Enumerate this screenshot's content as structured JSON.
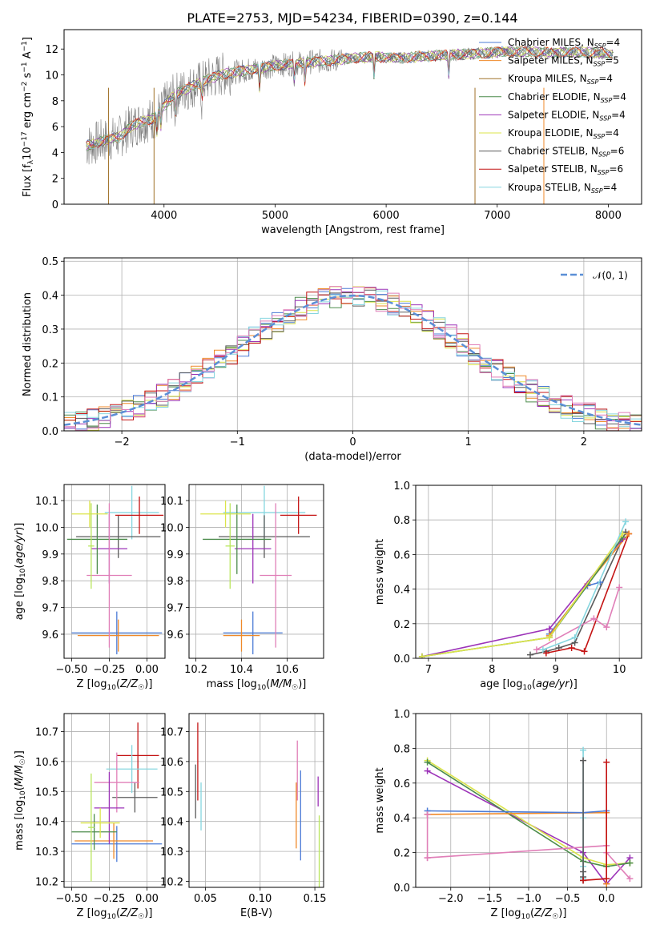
{
  "figure_title": "PLATE=2753, MJD=54234, FIBERID=0390, z=0.144",
  "colors": {
    "Chabrier MILES": "#4c7bd6",
    "Salpeter MILES": "#ef8a2a",
    "Kroupa MILES": "#a0722a",
    "Chabrier ELODIE": "#4c8c4c",
    "Salpeter ELODIE": "#9c33b8",
    "Kroupa ELODIE": "#dbe44a",
    "Chabrier STELIB": "#5a5a5a",
    "Salpeter STELIB": "#c41414",
    "Kroupa STELIB": "#86d6df",
    "pink": "#e07fb8",
    "lime": "#b9e65c",
    "normal_curve": "#5b8fd6",
    "spectrum_data": "#808080"
  },
  "chart_data": [
    {
      "panel": "spectrum",
      "type": "line",
      "title": "PLATE=2753, MJD=54234, FIBERID=0390, z=0.144",
      "xlabel": "wavelength [Angstrom, rest frame]",
      "ylabel": "Flux [f_λ 10^-17 erg cm^-2 s^-1 A^-1]",
      "xlim": [
        3100,
        8300
      ],
      "ylim": [
        0,
        13.5
      ],
      "xticks": [
        4000,
        5000,
        6000,
        7000,
        8000
      ],
      "yticks": [
        0,
        2,
        4,
        6,
        8,
        10,
        12
      ],
      "legend": [
        "Chabrier MILES, N_SSP=4",
        "Salpeter MILES, N_SSP=5",
        "Kroupa MILES, N_SSP=4",
        "Chabrier ELODIE, N_SSP=4",
        "Salpeter ELODIE, N_SSP=4",
        "Kroupa ELODIE, N_SSP=4",
        "Chabrier STELIB, N_SSP=6",
        "Salpeter STELIB, N_SSP=6",
        "Kroupa STELIB, N_SSP=4"
      ],
      "continuum": [
        [
          3300,
          4.5
        ],
        [
          3450,
          4.9
        ],
        [
          3600,
          5.2
        ],
        [
          3700,
          6.0
        ],
        [
          3800,
          6.4
        ],
        [
          3900,
          6.6
        ],
        [
          4000,
          7.6
        ],
        [
          4100,
          8.5
        ],
        [
          4300,
          9.3
        ],
        [
          4500,
          10.0
        ],
        [
          4700,
          10.3
        ],
        [
          4900,
          10.6
        ],
        [
          5100,
          10.8
        ],
        [
          5300,
          11.0
        ],
        [
          5500,
          11.1
        ],
        [
          5700,
          11.3
        ],
        [
          5900,
          11.4
        ],
        [
          6100,
          11.3
        ],
        [
          6300,
          11.4
        ],
        [
          6500,
          11.5
        ],
        [
          6700,
          11.6
        ],
        [
          6900,
          11.7
        ],
        [
          7100,
          11.8
        ],
        [
          7300,
          11.8
        ],
        [
          7500,
          11.7
        ],
        [
          7700,
          11.8
        ],
        [
          7900,
          11.7
        ],
        [
          8050,
          11.6
        ]
      ],
      "absorption_lines": [
        3934,
        3969,
        4102,
        4340,
        4861,
        5175,
        5270,
        5890,
        6563
      ]
    },
    {
      "panel": "residual_histogram",
      "type": "histogram",
      "xlabel": "(data-model)/error",
      "ylabel": "Normed distribution",
      "xlim": [
        -2.5,
        2.5
      ],
      "ylim": [
        0,
        0.51
      ],
      "xticks": [
        -2,
        -1,
        0,
        1,
        2
      ],
      "yticks": [
        0.0,
        0.1,
        0.2,
        0.3,
        0.4,
        0.5
      ],
      "legend": [
        "𝒩(0, 1)"
      ],
      "bin_width": 0.1
    },
    {
      "panel": "age_vs_Z",
      "type": "errorbar",
      "xlabel": "Z [log10(Z/Z☉)]",
      "ylabel": "age [log10(age/yr)]",
      "xlim": [
        -0.55,
        0.12
      ],
      "ylim": [
        9.51,
        10.16
      ],
      "xticks": [
        -0.5,
        -0.25,
        0.0
      ],
      "xticklabels": [
        "−0.50",
        "−0.25",
        "0.00"
      ],
      "yticks": [
        9.6,
        9.7,
        9.8,
        9.9,
        10.0,
        10.1
      ],
      "points": [
        {
          "series": "Chabrier MILES",
          "x": -0.2,
          "xerr": 0.3,
          "y": 9.605,
          "yerr": 0.08
        },
        {
          "series": "Salpeter MILES",
          "x": -0.19,
          "xerr": 0.27,
          "y": 9.595,
          "yerr": 0.06
        },
        {
          "series": "Kroupa STELIB",
          "x": -0.1,
          "xerr": 0.18,
          "y": 10.055,
          "yerr": 0.1
        },
        {
          "series": "Chabrier STELIB",
          "x": -0.19,
          "xerr": 0.28,
          "y": 9.965,
          "yerr": 0.08
        },
        {
          "series": "Salpeter STELIB",
          "x": -0.05,
          "xerr": 0.16,
          "y": 10.045,
          "yerr": 0.07
        },
        {
          "series": "Salpeter ELODIE",
          "x": -0.25,
          "xerr": 0.12,
          "y": 9.92,
          "yerr": 0.13
        },
        {
          "series": "Chabrier ELODIE",
          "x": -0.33,
          "xerr": 0.2,
          "y": 9.955,
          "yerr": 0.13
        },
        {
          "series": "Kroupa ELODIE",
          "x": -0.38,
          "xerr": 0.12,
          "y": 10.05,
          "yerr": 0.05
        },
        {
          "series": "pink",
          "x": -0.25,
          "xerr": 0.15,
          "y": 9.82,
          "yerr": 0.27
        },
        {
          "series": "lime",
          "x": -0.37,
          "xerr": 0.02,
          "y": 9.93,
          "yerr": 0.16
        }
      ]
    },
    {
      "panel": "age_vs_mass",
      "type": "errorbar",
      "xlabel": "mass [log10(M/M☉)]",
      "xlim": [
        10.17,
        10.76
      ],
      "ylim": [
        9.51,
        10.16
      ],
      "xticks": [
        10.2,
        10.4,
        10.6
      ],
      "yticks": [
        9.6,
        9.7,
        9.8,
        9.9,
        10.0,
        10.1
      ],
      "points": [
        {
          "series": "Chabrier MILES",
          "x": 10.45,
          "xerr": 0.13,
          "y": 9.605,
          "yerr": 0.08
        },
        {
          "series": "Salpeter MILES",
          "x": 10.4,
          "xerr": 0.08,
          "y": 9.595,
          "yerr": 0.06
        },
        {
          "series": "Kroupa STELIB",
          "x": 10.5,
          "xerr": 0.18,
          "y": 10.055,
          "yerr": 0.1
        },
        {
          "series": "Chabrier STELIB",
          "x": 10.5,
          "xerr": 0.2,
          "y": 9.965,
          "yerr": 0.08
        },
        {
          "series": "Salpeter STELIB",
          "x": 10.65,
          "xerr": 0.08,
          "y": 10.045,
          "yerr": 0.07
        },
        {
          "series": "Salpeter ELODIE",
          "x": 10.45,
          "xerr": 0.08,
          "y": 9.92,
          "yerr": 0.13
        },
        {
          "series": "Chabrier ELODIE",
          "x": 10.38,
          "xerr": 0.15,
          "y": 9.955,
          "yerr": 0.13
        },
        {
          "series": "Kroupa ELODIE",
          "x": 10.33,
          "xerr": 0.11,
          "y": 10.05,
          "yerr": 0.05
        },
        {
          "series": "pink",
          "x": 10.55,
          "xerr": 0.07,
          "y": 9.82,
          "yerr": 0.27
        },
        {
          "series": "lime",
          "x": 10.35,
          "xerr": 0.02,
          "y": 9.93,
          "yerr": 0.16
        }
      ]
    },
    {
      "panel": "weight_vs_age",
      "type": "line",
      "xlabel": "age [log10(age/yr)]",
      "ylabel": "mass weight",
      "xlim": [
        6.8,
        10.35
      ],
      "ylim": [
        0,
        1.0
      ],
      "xticks": [
        7,
        8,
        9,
        10
      ],
      "yticks": [
        0.0,
        0.2,
        0.4,
        0.6,
        0.8,
        1.0
      ],
      "series": [
        {
          "series": "Chabrier STELIB",
          "x": [
            8.6,
            8.85,
            9.05,
            9.3,
            10.1
          ],
          "y": [
            0.02,
            0.04,
            0.06,
            0.09,
            0.73
          ]
        },
        {
          "series": "Salpeter STELIB",
          "x": [
            8.85,
            9.25,
            9.45,
            10.15
          ],
          "y": [
            0.03,
            0.06,
            0.04,
            0.72
          ]
        },
        {
          "series": "pink",
          "x": [
            8.7,
            9.6,
            9.8,
            10.0
          ],
          "y": [
            0.05,
            0.23,
            0.18,
            0.41
          ]
        },
        {
          "series": "Chabrier MILES",
          "x": [
            8.9,
            9.5,
            9.7
          ],
          "y": [
            0.14,
            0.42,
            0.44
          ]
        },
        {
          "series": "Salpeter MILES",
          "x": [
            8.9,
            9.5,
            10.15
          ],
          "y": [
            0.13,
            0.43,
            0.72
          ]
        },
        {
          "series": "Salpeter ELODIE",
          "x": [
            6.9,
            8.9,
            10.05
          ],
          "y": [
            0.01,
            0.17,
            0.69
          ]
        },
        {
          "series": "Chabrier ELODIE",
          "x": [
            6.9,
            8.9,
            10.05
          ],
          "y": [
            0.01,
            0.12,
            0.7
          ]
        },
        {
          "series": "Kroupa ELODIE",
          "x": [
            6.9,
            8.9,
            10.05
          ],
          "y": [
            0.01,
            0.12,
            0.72
          ]
        },
        {
          "series": "Kroupa STELIB",
          "x": [
            8.8,
            9.3,
            10.1
          ],
          "y": [
            0.05,
            0.12,
            0.79
          ]
        }
      ]
    },
    {
      "panel": "mass_vs_Z",
      "type": "errorbar",
      "xlabel": "Z [log10(Z/Z☉)]",
      "ylabel": "mass [log10(M/M☉)]",
      "xlim": [
        -0.55,
        0.12
      ],
      "ylim": [
        10.18,
        10.76
      ],
      "xticks": [
        -0.5,
        -0.25,
        0.0
      ],
      "xticklabels": [
        "−0.50",
        "−0.25",
        "0.00"
      ],
      "yticks": [
        10.2,
        10.3,
        10.4,
        10.5,
        10.6,
        10.7
      ],
      "points": [
        {
          "series": "Chabrier MILES",
          "x": -0.2,
          "xerr": 0.3,
          "y": 10.325,
          "yerr": 0.06
        },
        {
          "series": "Salpeter MILES",
          "x": -0.22,
          "xerr": 0.26,
          "y": 10.335,
          "yerr": 0.06
        },
        {
          "series": "Salpeter STELIB",
          "x": -0.06,
          "xerr": 0.14,
          "y": 10.62,
          "yerr": 0.11
        },
        {
          "series": "Kroupa STELIB",
          "x": -0.1,
          "xerr": 0.17,
          "y": 10.575,
          "yerr": 0.08
        },
        {
          "series": "Chabrier STELIB",
          "x": -0.08,
          "xerr": 0.15,
          "y": 10.48,
          "yerr": 0.05
        },
        {
          "series": "pink",
          "x": -0.2,
          "xerr": 0.15,
          "y": 10.53,
          "yerr": 0.1
        },
        {
          "series": "Salpeter ELODIE",
          "x": -0.25,
          "xerr": 0.1,
          "y": 10.445,
          "yerr": 0.12
        },
        {
          "series": "Chabrier ELODIE",
          "x": -0.35,
          "xerr": 0.15,
          "y": 10.365,
          "yerr": 0.06
        },
        {
          "series": "Kroupa ELODIE",
          "x": -0.31,
          "xerr": 0.13,
          "y": 10.395,
          "yerr": 0.05
        },
        {
          "series": "lime",
          "x": -0.37,
          "xerr": 0.02,
          "y": 10.38,
          "yerr": 0.18
        }
      ]
    },
    {
      "panel": "mass_vs_EBV",
      "type": "errorbar",
      "xlabel": "E(B-V)",
      "xlim": [
        0.035,
        0.158
      ],
      "ylim": [
        10.18,
        10.76
      ],
      "xticks": [
        0.05,
        0.1,
        0.15
      ],
      "xticklabels": [
        "0.05",
        "0.10",
        "0.15"
      ],
      "yticks": [
        10.2,
        10.3,
        10.4,
        10.5,
        10.6,
        10.7
      ],
      "points": [
        {
          "series": "Chabrier STELIB",
          "x": 0.041,
          "y": 10.5,
          "yerr": 0.09
        },
        {
          "series": "Salpeter STELIB",
          "x": 0.043,
          "y": 10.6,
          "yerr": 0.13
        },
        {
          "series": "Kroupa STELIB",
          "x": 0.046,
          "y": 10.45,
          "yerr": 0.08
        },
        {
          "series": "Salpeter MILES",
          "x": 0.133,
          "y": 10.42,
          "yerr": 0.11
        },
        {
          "series": "pink",
          "x": 0.134,
          "y": 10.57,
          "yerr": 0.1
        },
        {
          "series": "Chabrier MILES",
          "x": 0.137,
          "y": 10.42,
          "yerr": 0.15
        },
        {
          "series": "Salpeter ELODIE",
          "x": 0.153,
          "y": 10.5,
          "yerr": 0.05
        },
        {
          "series": "lime",
          "x": 0.154,
          "y": 10.3,
          "yerr": 0.12
        }
      ]
    },
    {
      "panel": "weight_vs_Z",
      "type": "line",
      "xlabel": "Z [log10(Z/Z☉)]",
      "ylabel": "mass weight",
      "xlim": [
        -2.45,
        0.45
      ],
      "ylim": [
        0,
        1.0
      ],
      "xticks": [
        -2.0,
        -1.5,
        -1.0,
        -0.5,
        0.0
      ],
      "xticklabels": [
        "−2.0",
        "−1.5",
        "−1.0",
        "−0.5",
        "0.0"
      ],
      "yticks": [
        0.0,
        0.2,
        0.4,
        0.6,
        0.8,
        1.0
      ],
      "series": [
        {
          "series": "Salpeter ELODIE",
          "x": [
            -2.3,
            -0.3,
            0.0,
            0.3
          ],
          "y": [
            0.67,
            0.2,
            0.02,
            0.17
          ]
        },
        {
          "series": "Kroupa ELODIE",
          "x": [
            -2.3,
            -0.3,
            0.0,
            0.3
          ],
          "y": [
            0.73,
            0.17,
            0.13,
            0.14
          ]
        },
        {
          "series": "Chabrier ELODIE",
          "x": [
            -2.3,
            -0.3,
            0.0,
            0.3
          ],
          "y": [
            0.72,
            0.15,
            0.12,
            0.14
          ]
        },
        {
          "series": "Salpeter MILES",
          "x": [
            -2.3,
            0.0,
            0.0
          ],
          "y": [
            0.42,
            0.43,
            0.02
          ]
        },
        {
          "series": "Chabrier MILES",
          "x": [
            -2.3,
            -0.3,
            0.0
          ],
          "y": [
            0.44,
            0.43,
            0.44
          ]
        },
        {
          "series": "pink",
          "x": [
            -2.3,
            -2.3,
            -2.3,
            0.0,
            0.0,
            0.3
          ],
          "y": [
            0.17,
            0.42,
            0.17,
            0.24,
            0.2,
            0.05
          ]
        },
        {
          "series": "Kroupa STELIB",
          "x": [
            -0.3,
            -0.3,
            -0.3,
            -0.3
          ],
          "y": [
            0.79,
            0.05,
            0.4,
            0.12
          ]
        },
        {
          "series": "Chabrier STELIB",
          "x": [
            -0.3,
            -0.3,
            -0.3,
            -0.3
          ],
          "y": [
            0.73,
            0.09,
            0.06,
            0.04
          ]
        },
        {
          "series": "Salpeter STELIB",
          "x": [
            -0.3,
            0.0,
            0.0
          ],
          "y": [
            0.04,
            0.05,
            0.72
          ]
        }
      ]
    }
  ]
}
